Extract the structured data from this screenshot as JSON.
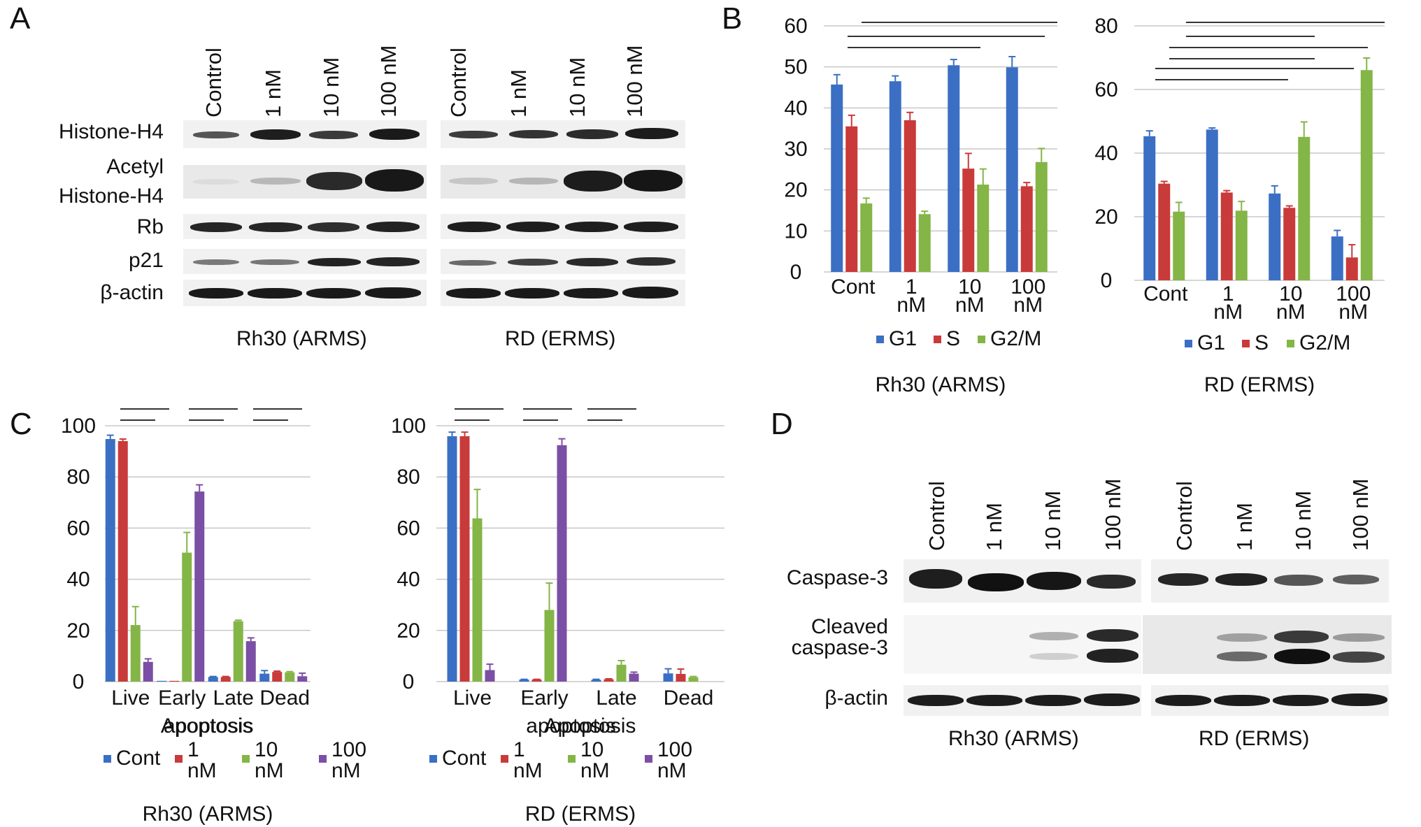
{
  "panels": [
    "A",
    "B",
    "C",
    "D"
  ],
  "lanes": [
    "Control",
    "1 nM",
    "10 nM",
    "100 nM"
  ],
  "cell_lines": [
    "Rh30 (ARMS)",
    "RD (ERMS)"
  ],
  "panel_a": {
    "rows": [
      "Histone-H4",
      "Acetyl",
      "Histone-H4",
      "Rb",
      "p21",
      "β-actin"
    ]
  },
  "panel_d": {
    "rows": [
      "Caspase-3",
      "Cleaved",
      "caspase-3",
      "β-actin"
    ]
  },
  "colors": {
    "G1": "#3b6fc4",
    "S": "#c93a3a",
    "G2/M": "#84b547",
    "Cont": "#3b6fc4",
    "1nM": "#c93a3a",
    "10nM": "#84b547",
    "100nM": "#7b4fa5",
    "grid": "#c8c8c8"
  },
  "chart_data": [
    {
      "id": "B-Rh30",
      "panel": "B",
      "type": "bar",
      "title": "Rh30 (ARMS)",
      "categories": [
        "Cont",
        "1 nM",
        "10 nM",
        "100 nM"
      ],
      "series": [
        {
          "name": "G1",
          "values": [
            45.7,
            46.5,
            50.4,
            49.9
          ],
          "errors": [
            2.4,
            1.3,
            1.4,
            2.6
          ]
        },
        {
          "name": "S",
          "values": [
            35.5,
            37.0,
            25.2,
            20.9
          ],
          "errors": [
            2.7,
            1.9,
            3.7,
            0.9
          ]
        },
        {
          "name": "G2/M",
          "values": [
            16.7,
            14.1,
            21.3,
            26.8
          ],
          "errors": [
            1.3,
            0.7,
            3.8,
            3.3
          ]
        }
      ],
      "ylim": [
        0,
        60
      ],
      "yticks": [
        0,
        10,
        20,
        30,
        40,
        50,
        60
      ],
      "grid": true,
      "legend": "bottom",
      "significance_brackets": 3
    },
    {
      "id": "B-RD",
      "panel": "B",
      "type": "bar",
      "title": "RD (ERMS)",
      "categories": [
        "Cont",
        "1 nM",
        "10 nM",
        "100 nM"
      ],
      "series": [
        {
          "name": "G1",
          "values": [
            45.3,
            47.4,
            27.3,
            13.8
          ],
          "errors": [
            1.7,
            0.5,
            2.4,
            1.9
          ]
        },
        {
          "name": "S",
          "values": [
            30.4,
            27.6,
            22.8,
            7.2
          ],
          "errors": [
            0.7,
            0.6,
            0.6,
            4.0
          ]
        },
        {
          "name": "G2/M",
          "values": [
            21.6,
            21.9,
            45.1,
            66.1
          ],
          "errors": [
            2.9,
            2.9,
            4.7,
            3.8
          ]
        }
      ],
      "ylim": [
        0,
        80
      ],
      "yticks": [
        0,
        20,
        40,
        60,
        80
      ],
      "grid": true,
      "legend": "bottom",
      "significance_brackets": 6
    },
    {
      "id": "C-Rh30",
      "panel": "C",
      "type": "bar",
      "title": "Rh30 (ARMS)",
      "categories": [
        "Live",
        "Early apoptosis",
        "Late Apoptosis",
        "Dead"
      ],
      "series": [
        {
          "name": "Cont",
          "values": [
            94.8,
            0.3,
            1.8,
            3.1
          ],
          "errors": [
            1.5,
            0.0,
            0.2,
            1.2
          ]
        },
        {
          "name": "1 nM",
          "values": [
            94.0,
            0.3,
            1.8,
            3.8
          ],
          "errors": [
            0.8,
            0.0,
            0.2,
            0.3
          ]
        },
        {
          "name": "10 nM",
          "values": [
            22.1,
            50.4,
            23.6,
            3.6
          ],
          "errors": [
            7.2,
            7.9,
            0.4,
            0.3
          ]
        },
        {
          "name": "100 nM",
          "values": [
            7.7,
            74.3,
            15.8,
            2.1
          ],
          "errors": [
            1.2,
            2.6,
            1.3,
            1.2
          ]
        }
      ],
      "ylim": [
        0,
        100
      ],
      "yticks": [
        0,
        20,
        40,
        60,
        80,
        100
      ],
      "grid": true,
      "legend": "bottom",
      "significance_brackets": 6
    },
    {
      "id": "C-RD",
      "panel": "C",
      "type": "bar",
      "title": "RD (ERMS)",
      "categories": [
        "Live",
        "Early apoptosis",
        "Late Apoptosis",
        "Dead"
      ],
      "series": [
        {
          "name": "Cont",
          "values": [
            95.9,
            0.8,
            0.7,
            3.2
          ],
          "errors": [
            1.6,
            0.1,
            0.2,
            1.8
          ]
        },
        {
          "name": "1 nM",
          "values": [
            95.9,
            0.8,
            0.9,
            3.0
          ],
          "errors": [
            1.6,
            0.1,
            0.2,
            1.9
          ]
        },
        {
          "name": "10 nM",
          "values": [
            63.8,
            28.0,
            6.6,
            1.7
          ],
          "errors": [
            11.3,
            10.5,
            1.6,
            0.3
          ]
        },
        {
          "name": "100 nM",
          "values": [
            4.5,
            92.4,
            3.1,
            0.0
          ],
          "errors": [
            2.3,
            2.5,
            0.6,
            0.0
          ]
        }
      ],
      "ylim": [
        0,
        100
      ],
      "yticks": [
        0,
        20,
        40,
        60,
        80,
        100
      ],
      "grid": true,
      "legend": "bottom",
      "significance_brackets": 6
    }
  ]
}
